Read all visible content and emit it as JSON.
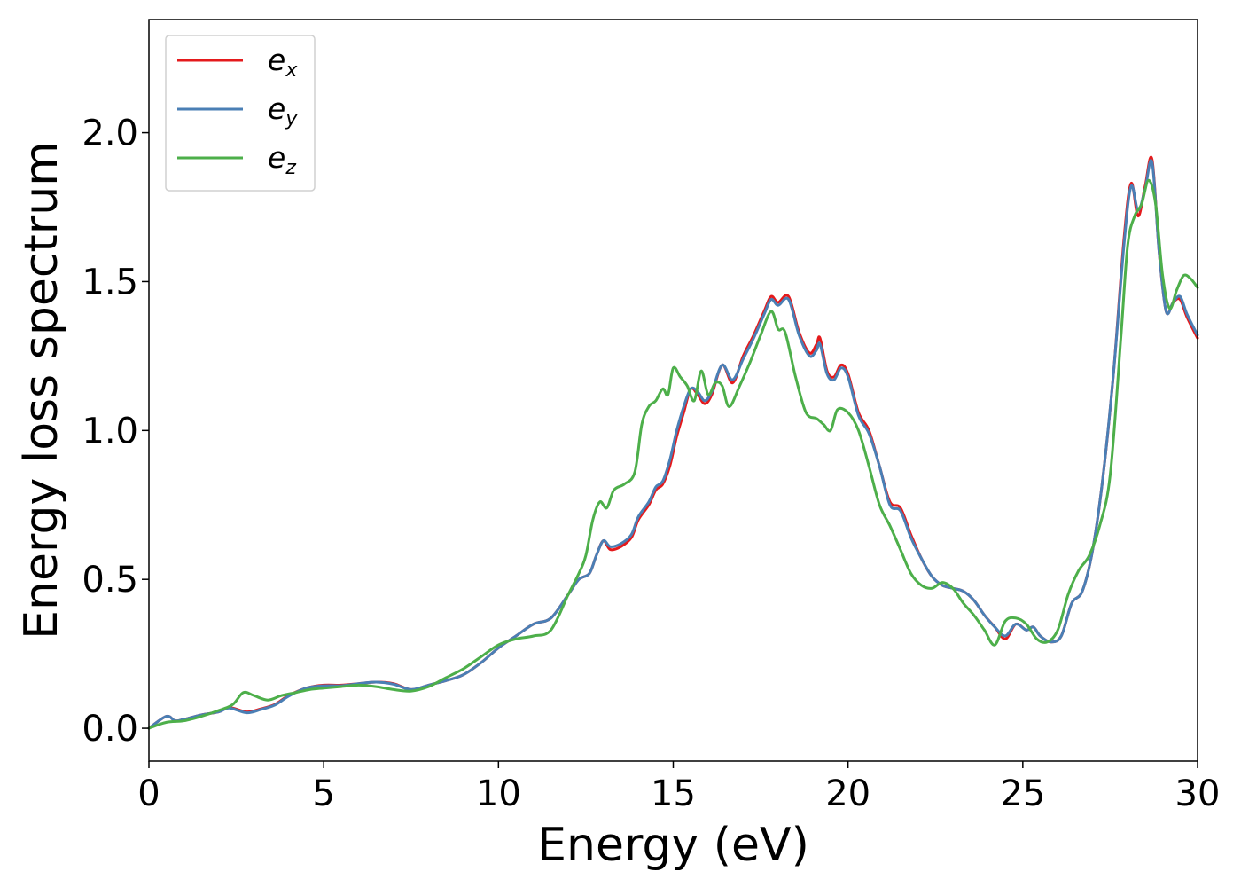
{
  "chart_data": {
    "type": "line",
    "xlabel": "Energy (eV)",
    "ylabel": "Energy loss spectrum",
    "xlim": [
      0,
      30
    ],
    "ylim": [
      -0.11,
      2.38
    ],
    "xticks": [
      "0",
      "5",
      "10",
      "15",
      "20",
      "25",
      "30"
    ],
    "yticks": [
      "0.0",
      "0.5",
      "1.0",
      "1.5",
      "2.0"
    ],
    "grid": false,
    "legend_position": "top-left",
    "series": [
      {
        "name": "e",
        "subscript": "x",
        "color": "#e41a1c",
        "x": [
          0,
          0.5,
          0.75,
          1.0,
          1.5,
          2.0,
          2.3,
          2.8,
          3.2,
          3.6,
          4.0,
          4.5,
          5.0,
          5.5,
          6.0,
          6.5,
          7.0,
          7.5,
          8.0,
          8.5,
          9.0,
          9.5,
          10.0,
          10.5,
          11.0,
          11.5,
          12.0,
          12.3,
          12.6,
          12.8,
          13.0,
          13.2,
          13.5,
          13.8,
          14.0,
          14.3,
          14.5,
          14.7,
          14.9,
          15.1,
          15.3,
          15.5,
          15.7,
          15.9,
          16.1,
          16.4,
          16.7,
          17.0,
          17.3,
          17.6,
          17.8,
          18.0,
          18.3,
          18.6,
          18.9,
          19.1,
          19.2,
          19.4,
          19.6,
          19.8,
          20.0,
          20.3,
          20.6,
          20.9,
          21.2,
          21.5,
          21.8,
          22.1,
          22.4,
          22.7,
          23.0,
          23.3,
          23.6,
          23.9,
          24.2,
          24.5,
          24.8,
          25.1,
          25.3,
          25.5,
          25.8,
          26.1,
          26.4,
          26.7,
          27.0,
          27.3,
          27.6,
          27.9,
          28.1,
          28.3,
          28.5,
          28.7,
          28.9,
          29.1,
          29.3,
          29.5,
          29.7,
          30.0
        ],
        "values": [
          0.0,
          0.04,
          0.025,
          0.03,
          0.045,
          0.055,
          0.07,
          0.055,
          0.065,
          0.08,
          0.11,
          0.135,
          0.145,
          0.145,
          0.15,
          0.155,
          0.15,
          0.13,
          0.145,
          0.16,
          0.18,
          0.22,
          0.27,
          0.31,
          0.35,
          0.37,
          0.45,
          0.5,
          0.52,
          0.58,
          0.63,
          0.6,
          0.61,
          0.64,
          0.7,
          0.75,
          0.8,
          0.82,
          0.88,
          0.98,
          1.06,
          1.14,
          1.12,
          1.09,
          1.12,
          1.22,
          1.16,
          1.25,
          1.32,
          1.4,
          1.45,
          1.43,
          1.45,
          1.33,
          1.26,
          1.29,
          1.31,
          1.2,
          1.18,
          1.22,
          1.19,
          1.06,
          1.0,
          0.88,
          0.76,
          0.74,
          0.65,
          0.57,
          0.51,
          0.48,
          0.47,
          0.46,
          0.43,
          0.38,
          0.34,
          0.3,
          0.35,
          0.33,
          0.34,
          0.31,
          0.29,
          0.31,
          0.42,
          0.46,
          0.6,
          0.85,
          1.2,
          1.65,
          1.83,
          1.72,
          1.82,
          1.91,
          1.6,
          1.4,
          1.43,
          1.44,
          1.38,
          1.31
        ]
      },
      {
        "name": "e",
        "subscript": "y",
        "color": "#4a7fb5",
        "x": [
          0,
          0.5,
          0.75,
          1.0,
          1.5,
          2.0,
          2.3,
          2.8,
          3.2,
          3.6,
          4.0,
          4.5,
          5.0,
          5.5,
          6.0,
          6.5,
          7.0,
          7.5,
          8.0,
          8.5,
          9.0,
          9.5,
          10.0,
          10.5,
          11.0,
          11.5,
          12.0,
          12.3,
          12.6,
          12.8,
          13.0,
          13.2,
          13.5,
          13.8,
          14.0,
          14.3,
          14.5,
          14.7,
          14.9,
          15.1,
          15.3,
          15.5,
          15.7,
          15.9,
          16.1,
          16.4,
          16.7,
          17.0,
          17.3,
          17.6,
          17.8,
          18.0,
          18.3,
          18.6,
          18.9,
          19.1,
          19.2,
          19.4,
          19.6,
          19.8,
          20.0,
          20.3,
          20.6,
          20.9,
          21.2,
          21.5,
          21.8,
          22.1,
          22.4,
          22.7,
          23.0,
          23.3,
          23.6,
          23.9,
          24.2,
          24.5,
          24.8,
          25.1,
          25.3,
          25.5,
          25.8,
          26.1,
          26.4,
          26.7,
          27.0,
          27.3,
          27.6,
          27.9,
          28.1,
          28.3,
          28.5,
          28.7,
          28.9,
          29.1,
          29.3,
          29.5,
          29.7,
          30.0
        ],
        "values": [
          0.0,
          0.04,
          0.025,
          0.03,
          0.045,
          0.055,
          0.068,
          0.052,
          0.063,
          0.078,
          0.108,
          0.135,
          0.143,
          0.143,
          0.15,
          0.155,
          0.148,
          0.13,
          0.145,
          0.16,
          0.18,
          0.22,
          0.27,
          0.31,
          0.35,
          0.37,
          0.45,
          0.5,
          0.52,
          0.58,
          0.63,
          0.61,
          0.62,
          0.65,
          0.71,
          0.76,
          0.81,
          0.83,
          0.9,
          1.0,
          1.08,
          1.14,
          1.13,
          1.1,
          1.13,
          1.22,
          1.17,
          1.24,
          1.31,
          1.39,
          1.44,
          1.42,
          1.44,
          1.32,
          1.25,
          1.27,
          1.29,
          1.19,
          1.17,
          1.21,
          1.18,
          1.05,
          0.99,
          0.88,
          0.75,
          0.73,
          0.64,
          0.57,
          0.51,
          0.48,
          0.47,
          0.46,
          0.43,
          0.38,
          0.34,
          0.31,
          0.35,
          0.33,
          0.34,
          0.31,
          0.29,
          0.31,
          0.42,
          0.46,
          0.6,
          0.85,
          1.2,
          1.63,
          1.82,
          1.74,
          1.81,
          1.9,
          1.6,
          1.4,
          1.43,
          1.45,
          1.39,
          1.32
        ]
      },
      {
        "name": "e",
        "subscript": "z",
        "color": "#4daf4a",
        "x": [
          0,
          0.5,
          1.0,
          1.5,
          2.0,
          2.4,
          2.7,
          3.0,
          3.4,
          3.8,
          4.2,
          4.6,
          5.0,
          5.5,
          6.0,
          6.5,
          7.0,
          7.5,
          8.0,
          8.5,
          9.0,
          9.5,
          10.0,
          10.5,
          11.0,
          11.5,
          12.0,
          12.3,
          12.5,
          12.7,
          12.9,
          13.1,
          13.3,
          13.6,
          13.9,
          14.1,
          14.3,
          14.5,
          14.7,
          14.85,
          15.0,
          15.2,
          15.4,
          15.6,
          15.8,
          16.0,
          16.2,
          16.4,
          16.6,
          16.9,
          17.2,
          17.5,
          17.8,
          18.0,
          18.2,
          18.5,
          18.8,
          19.1,
          19.3,
          19.5,
          19.7,
          20.0,
          20.3,
          20.6,
          20.9,
          21.2,
          21.5,
          21.8,
          22.1,
          22.4,
          22.7,
          23.0,
          23.3,
          23.6,
          23.9,
          24.2,
          24.5,
          24.8,
          25.1,
          25.4,
          25.7,
          26.0,
          26.3,
          26.6,
          26.9,
          27.2,
          27.5,
          27.8,
          28.0,
          28.2,
          28.4,
          28.6,
          28.8,
          29.0,
          29.2,
          29.4,
          29.6,
          29.8,
          30.0
        ],
        "values": [
          0.0,
          0.02,
          0.025,
          0.04,
          0.06,
          0.08,
          0.12,
          0.11,
          0.095,
          0.11,
          0.12,
          0.13,
          0.135,
          0.14,
          0.145,
          0.14,
          0.13,
          0.125,
          0.14,
          0.17,
          0.2,
          0.24,
          0.28,
          0.3,
          0.31,
          0.33,
          0.45,
          0.52,
          0.58,
          0.7,
          0.76,
          0.74,
          0.8,
          0.82,
          0.86,
          1.02,
          1.08,
          1.1,
          1.14,
          1.12,
          1.21,
          1.18,
          1.15,
          1.1,
          1.2,
          1.12,
          1.16,
          1.15,
          1.08,
          1.15,
          1.23,
          1.32,
          1.4,
          1.34,
          1.33,
          1.18,
          1.06,
          1.04,
          1.02,
          1.0,
          1.07,
          1.06,
          1.0,
          0.88,
          0.75,
          0.68,
          0.6,
          0.52,
          0.48,
          0.47,
          0.49,
          0.47,
          0.42,
          0.38,
          0.33,
          0.28,
          0.36,
          0.37,
          0.35,
          0.3,
          0.29,
          0.33,
          0.45,
          0.53,
          0.58,
          0.68,
          0.85,
          1.3,
          1.62,
          1.72,
          1.76,
          1.84,
          1.76,
          1.52,
          1.41,
          1.47,
          1.52,
          1.51,
          1.48
        ]
      }
    ]
  }
}
